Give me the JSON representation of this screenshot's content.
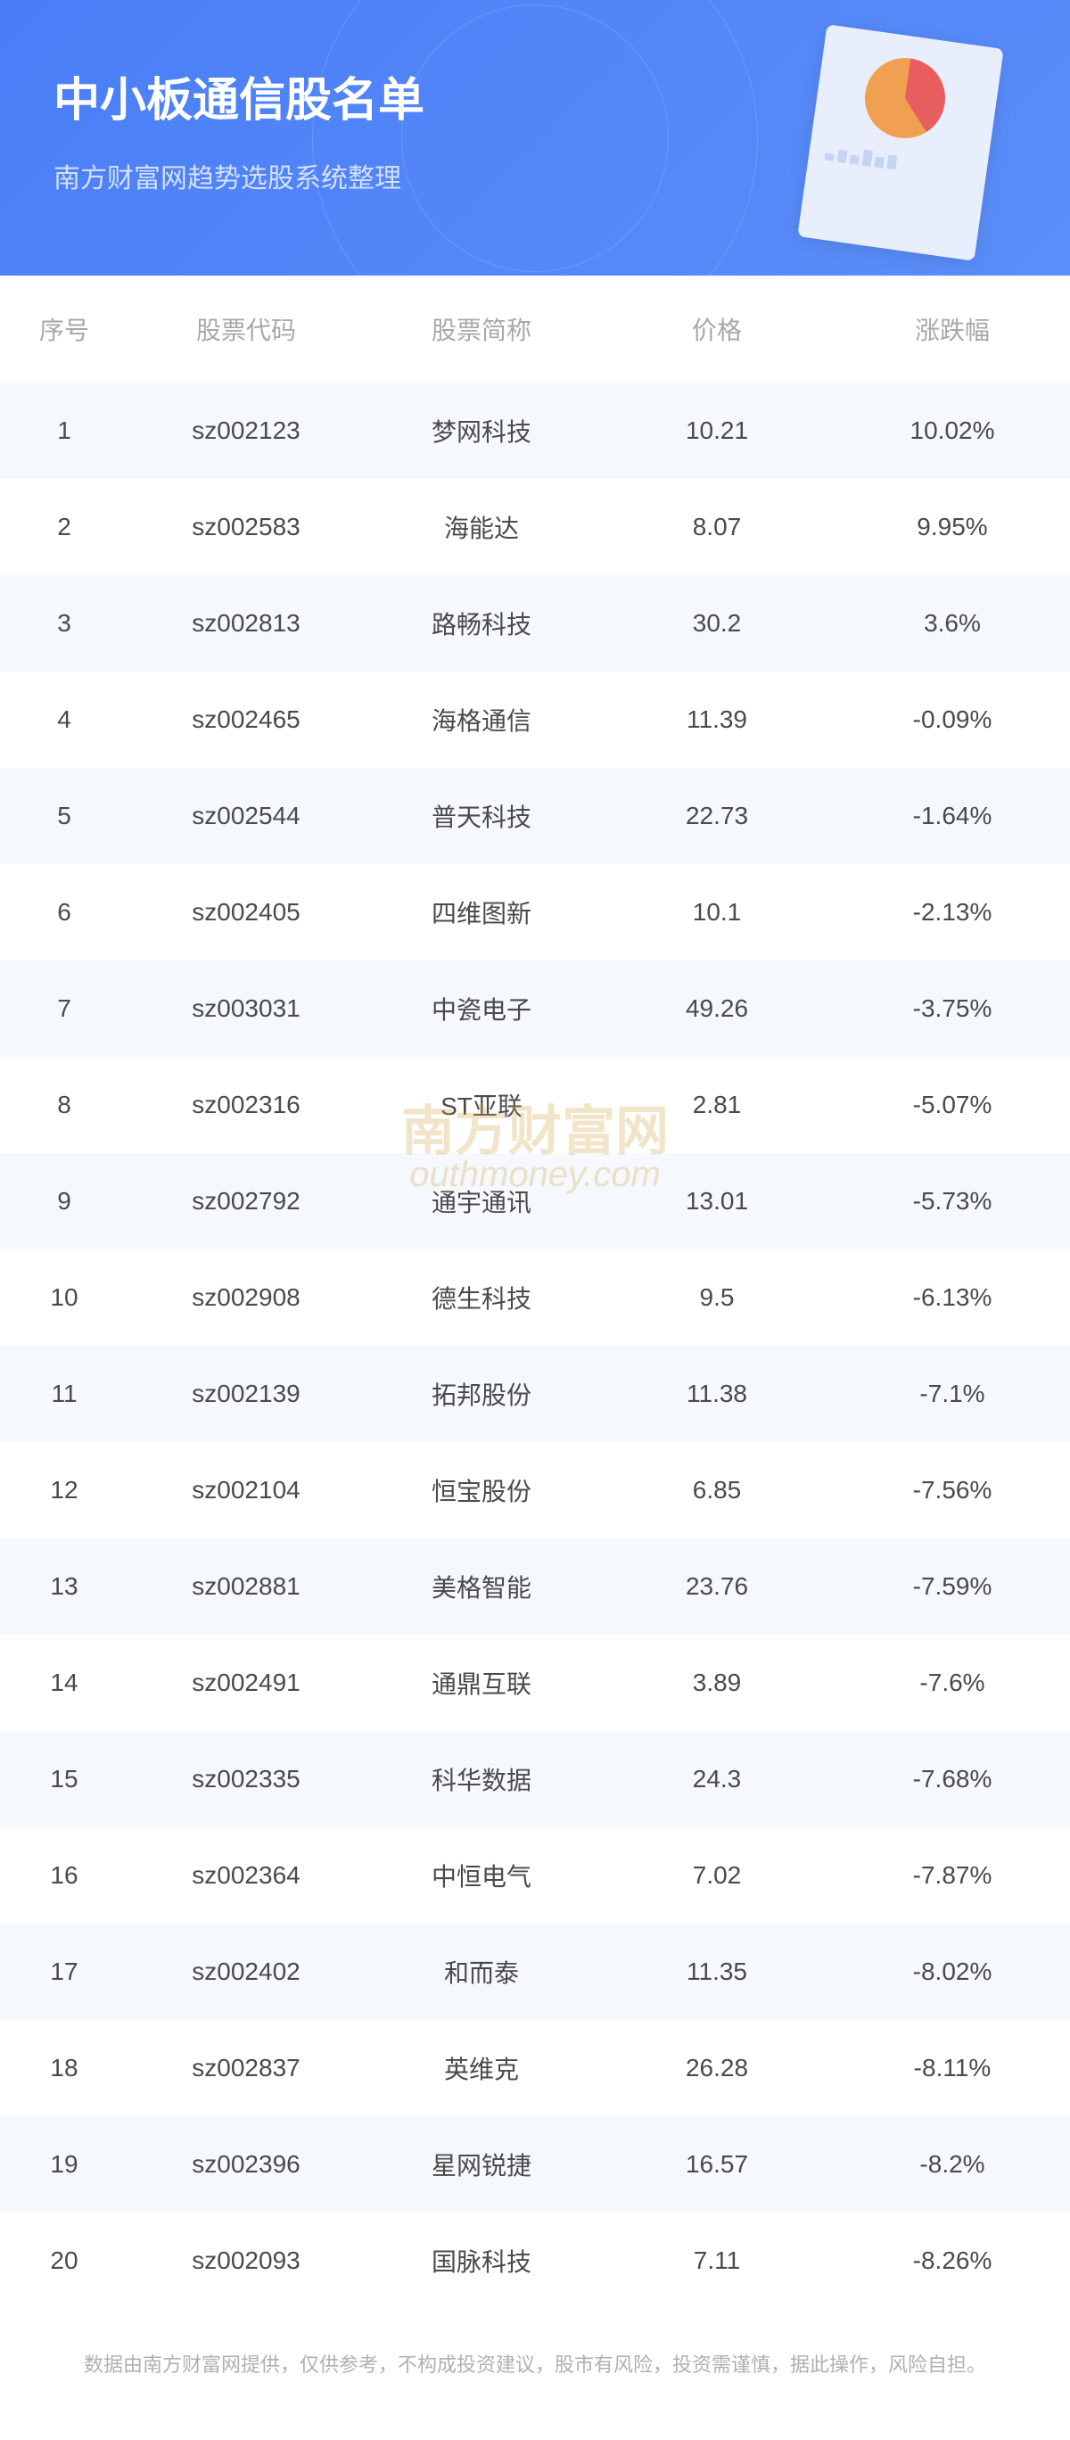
{
  "header": {
    "title": "中小板通信股名单",
    "subtitle": "南方财富网趋势选股系统整理",
    "bg_gradient_start": "#4a7ef7",
    "bg_gradient_end": "#5b8ef8",
    "title_color": "#ffffff",
    "subtitle_color": "#d4e0fb"
  },
  "table": {
    "columns": [
      "序号",
      "股票代码",
      "股票简称",
      "价格",
      "涨跌幅"
    ],
    "header_color": "#a8a8a8",
    "cell_color": "#4a4a4a",
    "row_odd_bg": "#f5f8fc",
    "row_even_bg": "#ffffff",
    "font_size": 28,
    "rows": [
      {
        "index": "1",
        "code": "sz002123",
        "name": "梦网科技",
        "price": "10.21",
        "change": "10.02%"
      },
      {
        "index": "2",
        "code": "sz002583",
        "name": "海能达",
        "price": "8.07",
        "change": "9.95%"
      },
      {
        "index": "3",
        "code": "sz002813",
        "name": "路畅科技",
        "price": "30.2",
        "change": "3.6%"
      },
      {
        "index": "4",
        "code": "sz002465",
        "name": "海格通信",
        "price": "11.39",
        "change": "-0.09%"
      },
      {
        "index": "5",
        "code": "sz002544",
        "name": "普天科技",
        "price": "22.73",
        "change": "-1.64%"
      },
      {
        "index": "6",
        "code": "sz002405",
        "name": "四维图新",
        "price": "10.1",
        "change": "-2.13%"
      },
      {
        "index": "7",
        "code": "sz003031",
        "name": "中瓷电子",
        "price": "49.26",
        "change": "-3.75%"
      },
      {
        "index": "8",
        "code": "sz002316",
        "name": "ST亚联",
        "price": "2.81",
        "change": "-5.07%"
      },
      {
        "index": "9",
        "code": "sz002792",
        "name": "通宇通讯",
        "price": "13.01",
        "change": "-5.73%"
      },
      {
        "index": "10",
        "code": "sz002908",
        "name": "德生科技",
        "price": "9.5",
        "change": "-6.13%"
      },
      {
        "index": "11",
        "code": "sz002139",
        "name": "拓邦股份",
        "price": "11.38",
        "change": "-7.1%"
      },
      {
        "index": "12",
        "code": "sz002104",
        "name": "恒宝股份",
        "price": "6.85",
        "change": "-7.56%"
      },
      {
        "index": "13",
        "code": "sz002881",
        "name": "美格智能",
        "price": "23.76",
        "change": "-7.59%"
      },
      {
        "index": "14",
        "code": "sz002491",
        "name": "通鼎互联",
        "price": "3.89",
        "change": "-7.6%"
      },
      {
        "index": "15",
        "code": "sz002335",
        "name": "科华数据",
        "price": "24.3",
        "change": "-7.68%"
      },
      {
        "index": "16",
        "code": "sz002364",
        "name": "中恒电气",
        "price": "7.02",
        "change": "-7.87%"
      },
      {
        "index": "17",
        "code": "sz002402",
        "name": "和而泰",
        "price": "11.35",
        "change": "-8.02%"
      },
      {
        "index": "18",
        "code": "sz002837",
        "name": "英维克",
        "price": "26.28",
        "change": "-8.11%"
      },
      {
        "index": "19",
        "code": "sz002396",
        "name": "星网锐捷",
        "price": "16.57",
        "change": "-8.2%"
      },
      {
        "index": "20",
        "code": "sz002093",
        "name": "国脉科技",
        "price": "7.11",
        "change": "-8.26%"
      }
    ]
  },
  "footer": {
    "text": "数据由南方财富网提供，仅供参考，不构成投资建议，股市有风险，投资需谨慎，据此操作，风险自担。",
    "color": "#b0b0b0"
  },
  "watermark": {
    "cn": "南方财富网",
    "en": "outhmoney.com",
    "color": "#d4a850"
  }
}
